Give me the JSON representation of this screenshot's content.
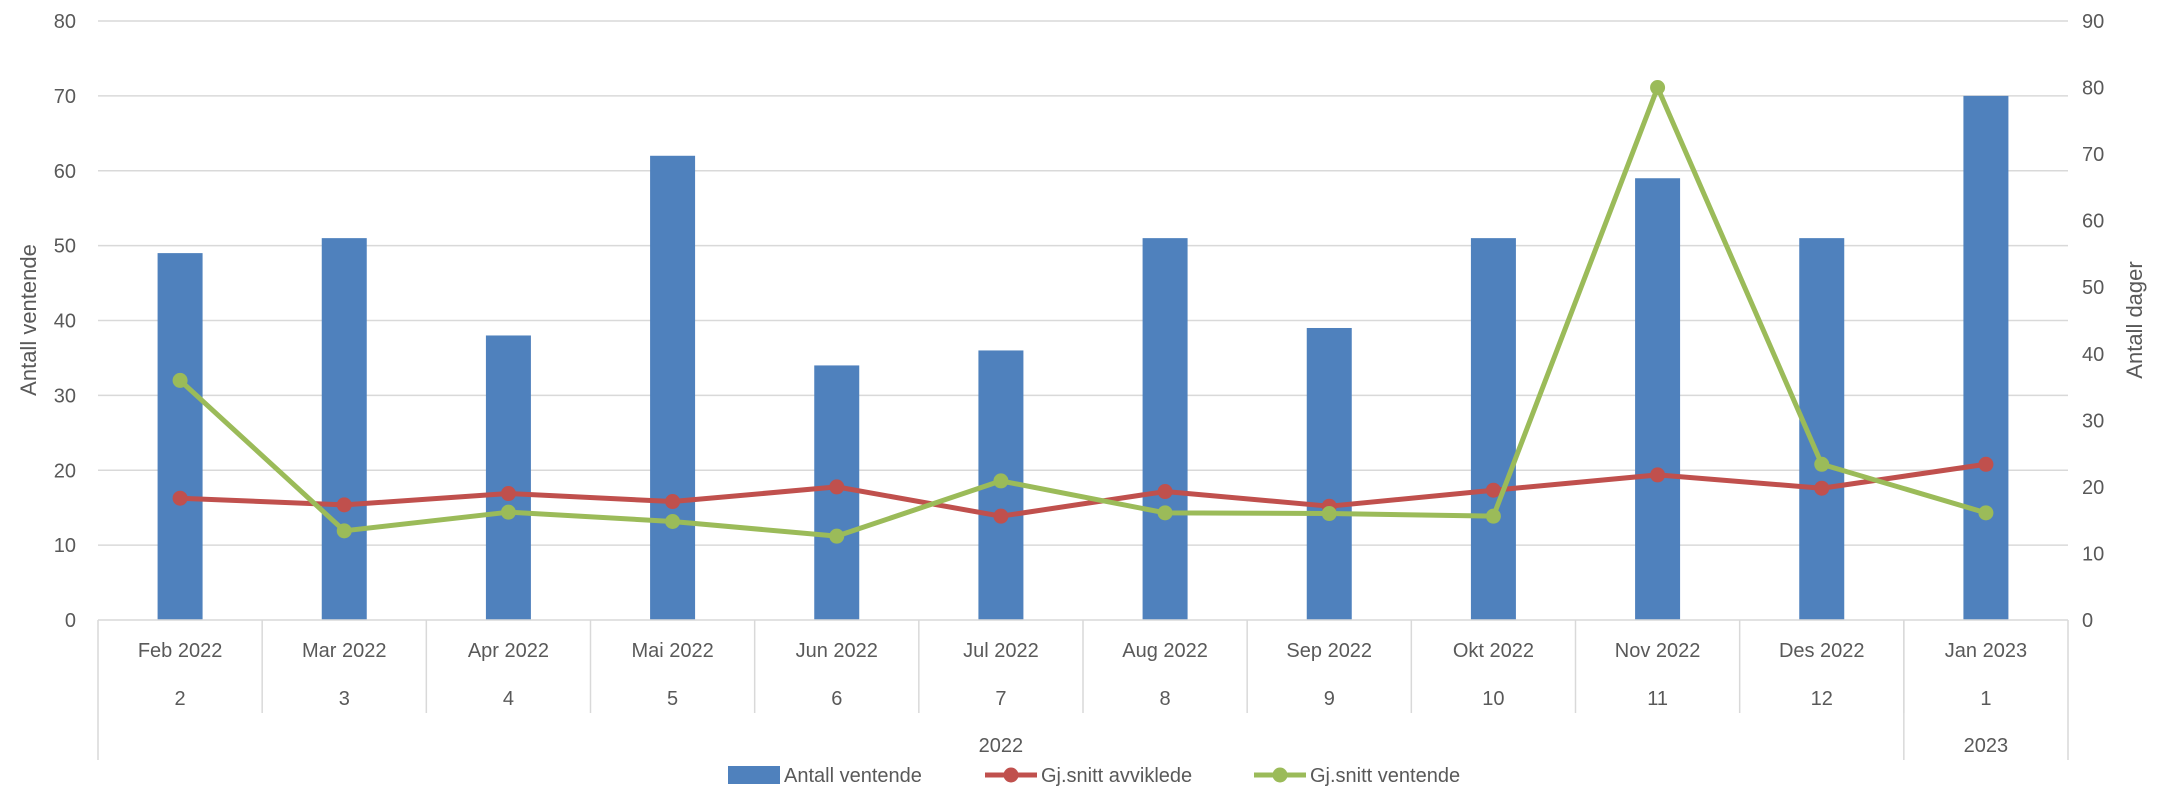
{
  "chart_data": {
    "type": "bar",
    "title": "",
    "categories": [
      "Feb 2022",
      "Mar 2022",
      "Apr 2022",
      "Mai 2022",
      "Jun 2022",
      "Jul 2022",
      "Aug 2022",
      "Sep 2022",
      "Okt 2022",
      "Nov 2022",
      "Des 2022",
      "Jan 2023"
    ],
    "month_numbers": [
      "2",
      "3",
      "4",
      "5",
      "6",
      "7",
      "8",
      "9",
      "10",
      "11",
      "12",
      "1"
    ],
    "year_groups": [
      {
        "label": "2022",
        "count": 11
      },
      {
        "label": "2023",
        "count": 1
      }
    ],
    "ylabel": "Antall ventende",
    "y2label": "Antall dager",
    "ylim": [
      0,
      80
    ],
    "y2lim": [
      0,
      90
    ],
    "yticks": [
      0,
      10,
      20,
      30,
      40,
      50,
      60,
      70,
      80
    ],
    "y2ticks": [
      0,
      10,
      20,
      30,
      40,
      50,
      60,
      70,
      80,
      90
    ],
    "grid": true,
    "legend_position": "bottom",
    "series": [
      {
        "name": "Antall ventende",
        "type": "bar",
        "axis": "left",
        "color": "#4F81BD",
        "values": [
          49,
          51,
          38,
          62,
          34,
          36,
          51,
          39,
          51,
          59,
          51,
          70
        ]
      },
      {
        "name": "Gj.snitt avviklede",
        "type": "line",
        "axis": "right",
        "color": "#C0504D",
        "values": [
          18.3,
          17.3,
          19.0,
          17.8,
          20.0,
          15.6,
          19.3,
          17.1,
          19.5,
          21.8,
          19.8,
          23.4
        ]
      },
      {
        "name": "Gj.snitt ventende",
        "type": "line",
        "axis": "right",
        "color": "#9BBB59",
        "values": [
          36.0,
          13.4,
          16.2,
          14.8,
          12.6,
          20.9,
          16.1,
          16.0,
          15.6,
          80.0,
          23.4,
          16.1
        ]
      }
    ]
  }
}
